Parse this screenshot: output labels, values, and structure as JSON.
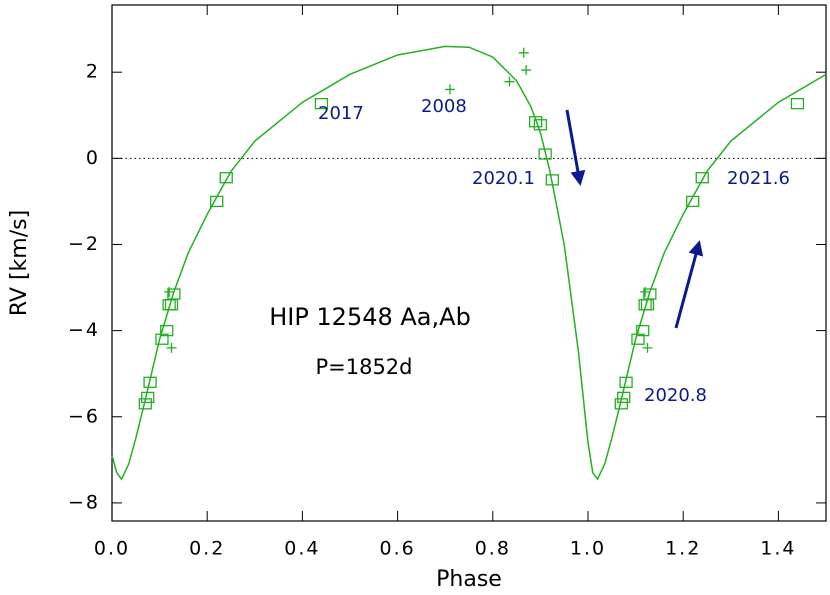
{
  "chart_data": {
    "type": "scatter",
    "xlabel": "Phase",
    "ylabel": "RV [km/s]",
    "xlim": [
      0,
      1.5
    ],
    "ylim": [
      -8.42,
      3.56
    ],
    "xticks": [
      {
        "value": 0,
        "label": "0.0"
      },
      0.2,
      0.4,
      0.6,
      0.8,
      {
        "value": 1,
        "label": "1.0"
      },
      1.2,
      1.4
    ],
    "yticks": [
      {
        "value": -8,
        "label": "−8"
      },
      {
        "value": -6,
        "label": "−6"
      },
      {
        "value": -4,
        "label": "−4"
      },
      {
        "value": -2,
        "label": "−2"
      },
      0,
      2
    ],
    "zero_line": true,
    "annotations": [
      "HIP 12548 Aa,Ab",
      "P=1852d",
      "2017",
      "2008",
      "2020.1",
      "2021.6",
      "2020.8"
    ],
    "series": [
      {
        "name": "orbit",
        "kind": "line",
        "color": "#22b022",
        "x": [
          0,
          0.01,
          0.02,
          0.035,
          0.05,
          0.07,
          0.1,
          0.13,
          0.16,
          0.2,
          0.25,
          0.3,
          0.4,
          0.5,
          0.6,
          0.7,
          0.75,
          0.8,
          0.85,
          0.88,
          0.9,
          0.92,
          0.95,
          0.98,
          1.0,
          1.01,
          1.02,
          1.035,
          1.05,
          1.07,
          1.1,
          1.13,
          1.16,
          1.2,
          1.25,
          1.3,
          1.4,
          1.5
        ],
        "values": [
          -6.9,
          -7.3,
          -7.45,
          -7.1,
          -6.5,
          -5.6,
          -4.2,
          -3.1,
          -2.2,
          -1.3,
          -0.3,
          0.4,
          1.3,
          1.95,
          2.4,
          2.6,
          2.58,
          2.35,
          1.8,
          1.2,
          0.6,
          -0.3,
          -2.0,
          -4.5,
          -6.6,
          -7.3,
          -7.45,
          -7.1,
          -6.5,
          -5.6,
          -4.2,
          -3.1,
          -2.2,
          -1.3,
          -0.3,
          0.4,
          1.3,
          1.95
        ]
      },
      {
        "name": "squares",
        "kind": "square",
        "color": "#22b022",
        "x": [
          0.07,
          0.075,
          0.08,
          0.105,
          0.115,
          0.12,
          0.125,
          0.13,
          0.22,
          0.24,
          0.44,
          0.89,
          0.9,
          0.91,
          0.925,
          1.07,
          1.075,
          1.08,
          1.105,
          1.115,
          1.12,
          1.125,
          1.13,
          1.22,
          1.24,
          1.44
        ],
        "values": [
          -5.7,
          -5.55,
          -5.2,
          -4.2,
          -4.0,
          -3.4,
          -3.4,
          -3.15,
          -1.0,
          -0.45,
          1.27,
          0.85,
          0.78,
          0.1,
          -0.5,
          -5.7,
          -5.55,
          -5.2,
          -4.2,
          -4.0,
          -3.4,
          -3.4,
          -3.15,
          -1.0,
          -0.45,
          1.27
        ]
      },
      {
        "name": "plus",
        "kind": "plus",
        "color": "#22b022",
        "x": [
          0.12,
          0.125,
          0.71,
          0.835,
          0.865,
          0.87,
          1.12,
          1.125
        ],
        "values": [
          -3.1,
          -4.4,
          1.6,
          1.78,
          2.45,
          2.05,
          -3.1,
          -4.4
        ]
      }
    ]
  }
}
